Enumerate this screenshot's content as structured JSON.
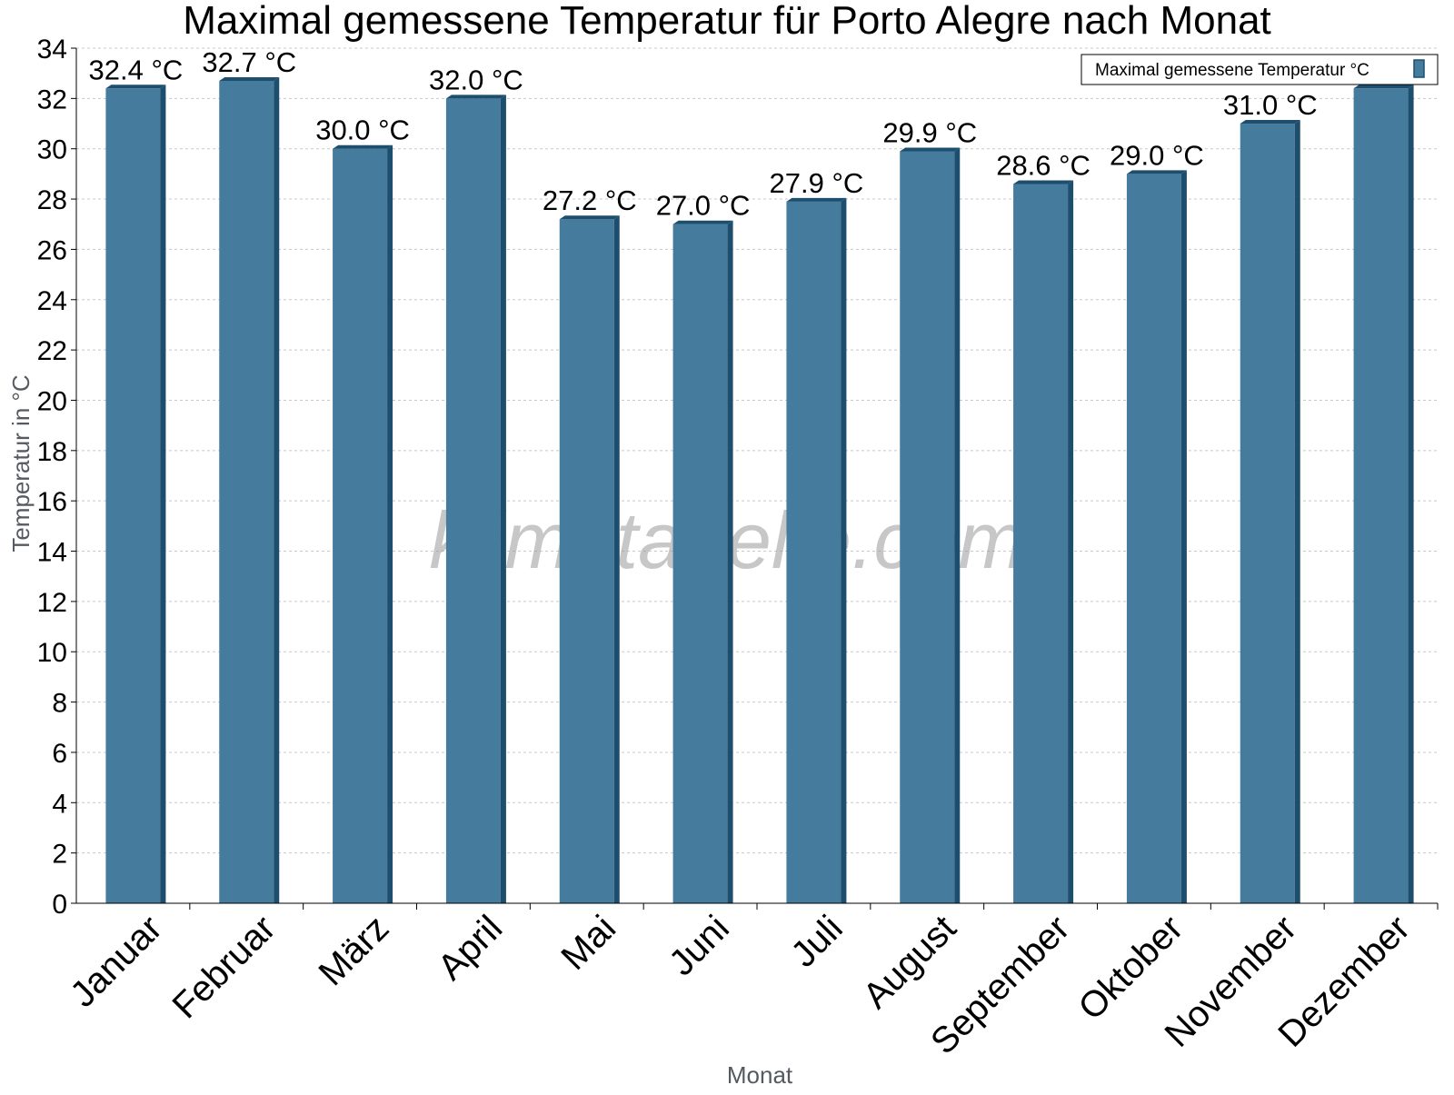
{
  "chart_data": {
    "type": "bar",
    "title": "Maximal gemessene Temperatur für Porto Alegre nach Monat",
    "xlabel": "Monat",
    "ylabel": "Temperatur in °C",
    "categories": [
      "Januar",
      "Februar",
      "März",
      "April",
      "Mai",
      "Juni",
      "Juli",
      "August",
      "September",
      "Oktober",
      "November",
      "Dezember"
    ],
    "series": [
      {
        "name": "Maximal gemessene Temperatur °C",
        "values": [
          32.4,
          32.7,
          30.0,
          32.0,
          27.2,
          27.0,
          27.9,
          29.9,
          28.6,
          29.0,
          31.0,
          32.4
        ],
        "labels": [
          "32.4 °C",
          "32.7 °C",
          "30.0 °C",
          "32.0 °C",
          "27.2 °C",
          "27.0 °C",
          "27.9 °C",
          "29.9 °C",
          "28.6 °C",
          "29.0 °C",
          "31.0 °C",
          ""
        ]
      }
    ],
    "ylim": [
      0,
      34
    ],
    "yticks": [
      "0",
      "2",
      "4",
      "6",
      "8",
      "10",
      "12",
      "14",
      "16",
      "18",
      "20",
      "22",
      "24",
      "26",
      "28",
      "30",
      "32",
      "34"
    ],
    "grid": true,
    "legend_position": "top-right",
    "colors": {
      "bar": "#457b9d",
      "bar_side": "#1d4e6e",
      "grid": "#c8c8c8"
    }
  },
  "watermark": "klimatabelle.com"
}
